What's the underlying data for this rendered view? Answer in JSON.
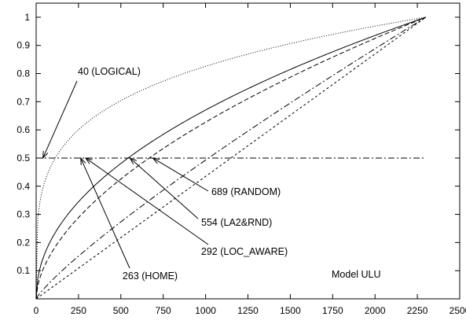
{
  "chart_data": {
    "type": "line",
    "title": "",
    "xlabel": "",
    "ylabel": "",
    "xlim": [
      0,
      2500
    ],
    "ylim": [
      0,
      1.05
    ],
    "x_ticks": [
      0,
      250,
      500,
      750,
      1000,
      1250,
      1500,
      1750,
      2000,
      2250,
      2500
    ],
    "y_ticks": [
      0.1,
      0.2,
      0.3,
      0.4,
      0.5,
      0.6,
      0.7,
      0.8,
      0.9,
      1
    ],
    "grid": false,
    "legend": "none",
    "x_max": 2300,
    "series": [
      {
        "style": "dotted",
        "exponent": 0.23
      },
      {
        "style": "solid",
        "exponent": 0.48
      },
      {
        "style": "dashed",
        "exponent": 0.56
      },
      {
        "style": "dashdot",
        "exponent": 0.85
      },
      {
        "style": "shortdash",
        "exponent": 1.0
      }
    ],
    "reference_line": {
      "y": 0.5,
      "style": "dashdot",
      "x": [
        0,
        2300
      ]
    },
    "annotations": [
      {
        "text": "40 (LOGICAL)",
        "x": 40,
        "y": 0.5
      },
      {
        "text": "263 (HOME)",
        "x": 263,
        "y": 0.5
      },
      {
        "text": "292 (LOC_AWARE)",
        "x": 292,
        "y": 0.5
      },
      {
        "text": "554 (LA2&RND)",
        "x": 554,
        "y": 0.5
      },
      {
        "text": "689 (RANDOM)",
        "x": 689,
        "y": 0.5
      }
    ],
    "model_label": "Model ULU"
  }
}
